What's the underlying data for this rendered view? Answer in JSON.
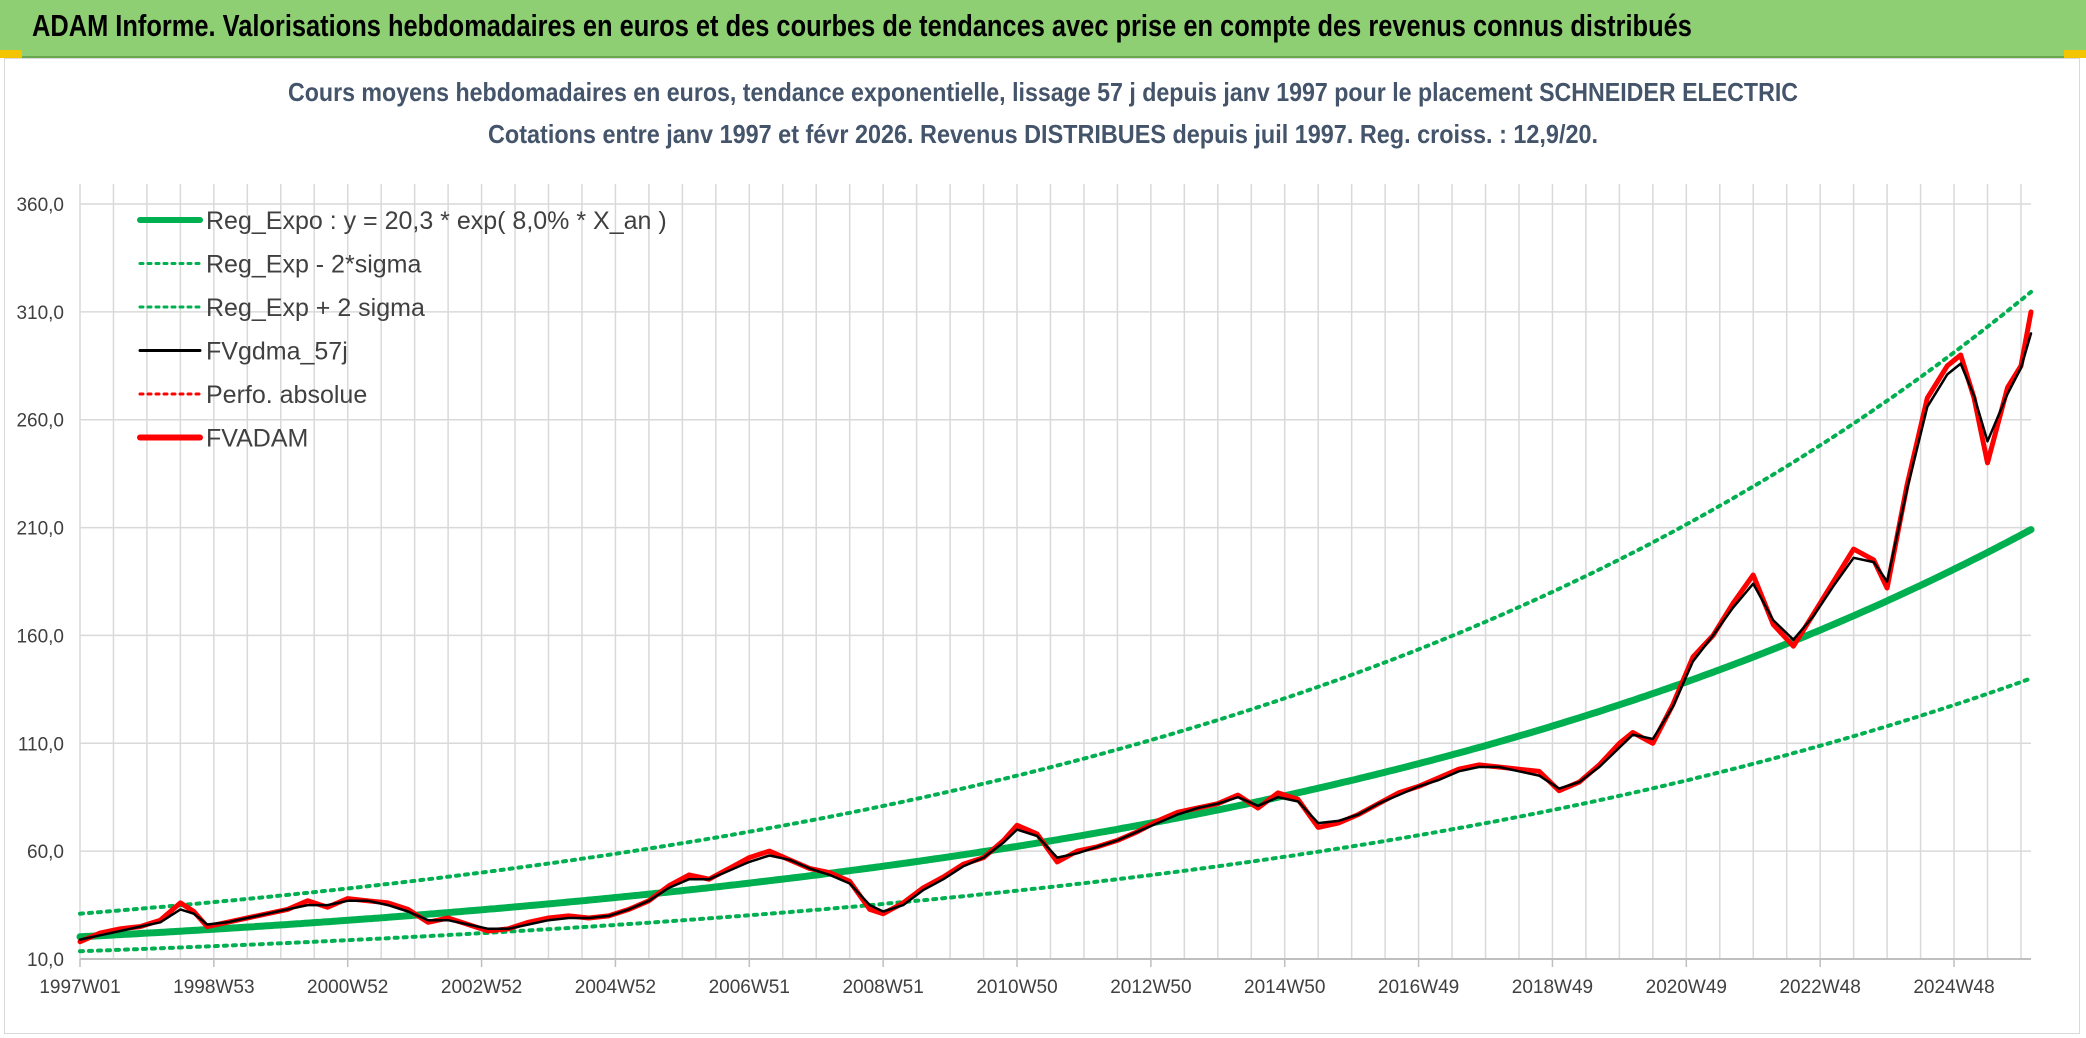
{
  "header": {
    "title": "ADAM Informe. Valorisations hebdomadaires en euros et des courbes de tendances avec prise en compte des revenus connus distribués"
  },
  "colors": {
    "header_bg": "#8fcf74",
    "trend": "#00b050",
    "price": "#ff0000",
    "smooth": "#000000",
    "grid": "#d9d9d9"
  },
  "chart_data": {
    "type": "line",
    "title_lines": [
      "Cours moyens hebdomadaires en euros, tendance exponentielle, lissage 57 j depuis janv 1997 pour le placement SCHNEIDER ELECTRIC",
      "Cotations entre janv 1997 et févr 2026. Revenus DISTRIBUES depuis juil 1997. Reg. croiss. : 12,9/20."
    ],
    "ylim": [
      10,
      360
    ],
    "y_ticks": [
      "360,0",
      "310,0",
      "260,0",
      "210,0",
      "160,0",
      "110,0",
      "60,0",
      "10,0"
    ],
    "y_tick_values": [
      360,
      310,
      260,
      210,
      160,
      110,
      60,
      10
    ],
    "x_range": [
      1997.0,
      2026.15
    ],
    "x_ticks": [
      "1997W01",
      "1998W53",
      "2000W52",
      "2002W52",
      "2004W52",
      "2006W51",
      "2008W51",
      "2010W50",
      "2012W50",
      "2014W50",
      "2016W49",
      "2018W49",
      "2020W49",
      "2022W48",
      "2024W48"
    ],
    "x_tick_values": [
      1997.0,
      1999.0,
      2001.0,
      2003.0,
      2005.0,
      2007.0,
      2009.0,
      2011.0,
      2013.0,
      2015.0,
      2017.0,
      2019.0,
      2021.0,
      2023.0,
      2025.0
    ],
    "legend": [
      {
        "label": "Reg_Expo : y = 20,3 * exp( 8,0% *  X_an )",
        "color": "#00b050",
        "style": "solid-thick"
      },
      {
        "label": "Reg_Exp - 2*sigma",
        "color": "#00b050",
        "style": "dotted"
      },
      {
        "label": "Reg_Exp + 2 sigma",
        "color": "#00b050",
        "style": "dotted"
      },
      {
        "label": "FVgdma_57j",
        "color": "#000000",
        "style": "solid"
      },
      {
        "label": "Perfo. absolue",
        "color": "#ff0000",
        "style": "dotted"
      },
      {
        "label": "FVADAM",
        "color": "#ff0000",
        "style": "solid-thick"
      }
    ],
    "series": [
      {
        "name": "Reg_Expo",
        "type": "exponential",
        "a": 20.3,
        "rate": 0.08,
        "x0": 1997.0,
        "color": "#00b050"
      },
      {
        "name": "Reg_Exp - 2*sigma",
        "type": "exponential",
        "a": 13.6,
        "rate": 0.08,
        "x0": 1997.0,
        "color": "#00b050"
      },
      {
        "name": "Reg_Exp + 2 sigma",
        "type": "exponential",
        "a": 31.0,
        "rate": 0.08,
        "x0": 1997.0,
        "color": "#00b050"
      },
      {
        "name": "FVADAM",
        "color": "#ff0000",
        "x": [
          1997.0,
          1997.3,
          1997.6,
          1997.9,
          1998.2,
          1998.5,
          1998.7,
          1998.9,
          1999.2,
          1999.5,
          1999.8,
          2000.1,
          2000.4,
          2000.7,
          2001.0,
          2001.3,
          2001.6,
          2001.9,
          2002.2,
          2002.5,
          2002.8,
          2003.1,
          2003.4,
          2003.7,
          2004.0,
          2004.3,
          2004.6,
          2004.9,
          2005.2,
          2005.5,
          2005.8,
          2006.1,
          2006.4,
          2006.7,
          2007.0,
          2007.3,
          2007.6,
          2007.9,
          2008.2,
          2008.5,
          2008.8,
          2009.0,
          2009.3,
          2009.6,
          2009.9,
          2010.2,
          2010.5,
          2010.8,
          2011.0,
          2011.3,
          2011.6,
          2011.9,
          2012.2,
          2012.5,
          2012.8,
          2013.1,
          2013.4,
          2013.7,
          2014.0,
          2014.3,
          2014.6,
          2014.9,
          2015.2,
          2015.5,
          2015.8,
          2016.1,
          2016.4,
          2016.7,
          2017.0,
          2017.3,
          2017.6,
          2017.9,
          2018.2,
          2018.5,
          2018.8,
          2019.1,
          2019.4,
          2019.7,
          2020.0,
          2020.2,
          2020.5,
          2020.8,
          2021.1,
          2021.4,
          2021.7,
          2022.0,
          2022.3,
          2022.6,
          2022.9,
          2023.2,
          2023.5,
          2023.8,
          2024.0,
          2024.3,
          2024.6,
          2024.9,
          2025.1,
          2025.3,
          2025.5,
          2025.8,
          2026.0,
          2026.15
        ],
        "values": [
          18,
          22,
          24,
          25,
          28,
          36,
          32,
          25,
          27,
          29,
          31,
          33,
          37,
          34,
          38,
          37,
          36,
          33,
          27,
          29,
          26,
          23,
          24,
          27,
          29,
          30,
          29,
          30,
          33,
          37,
          44,
          49,
          47,
          52,
          57,
          60,
          56,
          52,
          50,
          46,
          33,
          31,
          36,
          43,
          48,
          54,
          57,
          65,
          72,
          68,
          55,
          60,
          62,
          65,
          69,
          74,
          78,
          80,
          82,
          86,
          80,
          87,
          84,
          71,
          73,
          77,
          82,
          87,
          90,
          94,
          98,
          100,
          99,
          98,
          97,
          88,
          92,
          100,
          110,
          115,
          110,
          128,
          150,
          160,
          175,
          188,
          165,
          155,
          170,
          185,
          200,
          195,
          182,
          230,
          270,
          285,
          290,
          270,
          240,
          275,
          285,
          310
        ]
      },
      {
        "name": "FVgdma_57j",
        "color": "#000000",
        "x": [
          1997.0,
          1997.3,
          1997.6,
          1997.9,
          1998.2,
          1998.5,
          1998.7,
          1998.9,
          1999.2,
          1999.5,
          1999.8,
          2000.1,
          2000.4,
          2000.7,
          2001.0,
          2001.3,
          2001.6,
          2001.9,
          2002.2,
          2002.5,
          2002.8,
          2003.1,
          2003.4,
          2003.7,
          2004.0,
          2004.3,
          2004.6,
          2004.9,
          2005.2,
          2005.5,
          2005.8,
          2006.1,
          2006.4,
          2006.7,
          2007.0,
          2007.3,
          2007.6,
          2007.9,
          2008.2,
          2008.5,
          2008.8,
          2009.0,
          2009.3,
          2009.6,
          2009.9,
          2010.2,
          2010.5,
          2010.8,
          2011.0,
          2011.3,
          2011.6,
          2011.9,
          2012.2,
          2012.5,
          2012.8,
          2013.1,
          2013.4,
          2013.7,
          2014.0,
          2014.3,
          2014.6,
          2014.9,
          2015.2,
          2015.5,
          2015.8,
          2016.1,
          2016.4,
          2016.7,
          2017.0,
          2017.3,
          2017.6,
          2017.9,
          2018.2,
          2018.5,
          2018.8,
          2019.1,
          2019.4,
          2019.7,
          2020.0,
          2020.2,
          2020.5,
          2020.8,
          2021.1,
          2021.4,
          2021.7,
          2022.0,
          2022.3,
          2022.6,
          2022.9,
          2023.2,
          2023.5,
          2023.8,
          2024.0,
          2024.3,
          2024.6,
          2024.9,
          2025.1,
          2025.3,
          2025.5,
          2025.8,
          2026.0,
          2026.15
        ],
        "values": [
          19,
          21,
          23,
          25,
          27,
          33,
          31,
          26,
          27,
          29,
          31,
          33,
          35,
          35,
          37,
          37,
          35,
          32,
          28,
          28,
          26,
          24,
          24,
          26,
          28,
          29,
          29,
          30,
          33,
          37,
          43,
          47,
          47,
          51,
          55,
          58,
          56,
          52,
          49,
          45,
          35,
          32,
          35,
          42,
          47,
          53,
          57,
          64,
          70,
          67,
          57,
          59,
          62,
          65,
          69,
          73,
          77,
          80,
          82,
          85,
          81,
          85,
          83,
          73,
          74,
          77,
          82,
          86,
          90,
          93,
          97,
          99,
          99,
          97,
          95,
          89,
          92,
          99,
          108,
          114,
          112,
          127,
          148,
          160,
          173,
          184,
          167,
          158,
          169,
          183,
          196,
          194,
          185,
          228,
          266,
          281,
          286,
          271,
          250,
          272,
          284,
          300
        ]
      }
    ]
  }
}
